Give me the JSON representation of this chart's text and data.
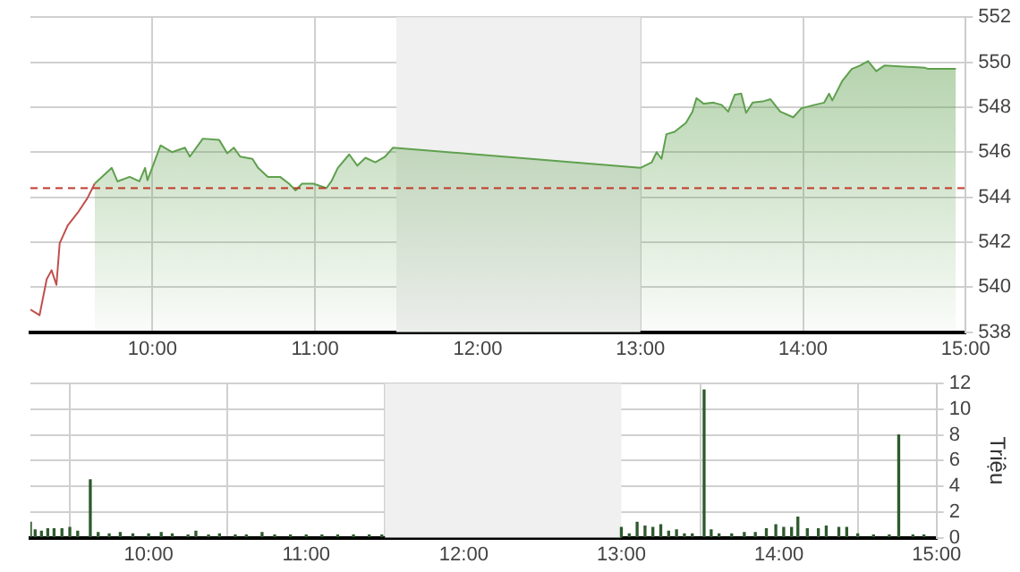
{
  "chart_data": [
    {
      "type": "line",
      "xlim": [
        9.25,
        15
      ],
      "xticks": [
        {
          "value": 10,
          "label": "10:00"
        },
        {
          "value": 11,
          "label": "11:00"
        },
        {
          "value": 12,
          "label": "12:00"
        },
        {
          "value": 13,
          "label": "13:00"
        },
        {
          "value": 14,
          "label": "14:00"
        },
        {
          "value": 15,
          "label": "15:00"
        }
      ],
      "ylim": [
        538,
        552
      ],
      "yticks": [
        538,
        540,
        542,
        544,
        546,
        548,
        550,
        552
      ],
      "grid": true,
      "legend": false,
      "series": [
        {
          "type": "line",
          "color": "#c0504d",
          "x": [
            9.25,
            9.306,
            9.35,
            9.38,
            9.41,
            9.43,
            9.48,
            9.54,
            9.6,
            9.645
          ],
          "values": [
            539.0,
            538.75,
            540.35,
            540.75,
            540.1,
            541.95,
            542.75,
            543.3,
            543.95,
            544.6
          ]
        },
        {
          "type": "area",
          "color": "#5fa04e",
          "x": [
            9.645,
            9.75,
            9.785,
            9.86,
            9.92,
            9.955,
            9.97,
            10.05,
            10.12,
            10.2,
            10.23,
            10.31,
            10.41,
            10.46,
            10.5,
            10.54,
            10.615,
            10.65,
            10.71,
            10.785,
            10.84,
            10.88,
            10.92,
            10.99,
            11.07,
            11.1,
            11.14,
            11.21,
            11.26,
            11.31,
            11.37,
            11.43,
            11.48,
            13.0,
            13.07,
            13.1,
            13.13,
            13.16,
            13.21,
            13.28,
            13.32,
            13.345,
            13.39,
            13.45,
            13.5,
            13.54,
            13.58,
            13.62,
            13.65,
            13.69,
            13.75,
            13.8,
            13.86,
            13.94,
            13.99,
            14.07,
            14.13,
            14.16,
            14.18,
            14.24,
            14.3,
            14.35,
            14.4,
            14.45,
            14.5,
            14.75,
            14.77,
            14.94
          ],
          "values": [
            544.6,
            545.3,
            544.7,
            544.9,
            544.7,
            545.3,
            544.75,
            546.3,
            546.0,
            546.2,
            545.8,
            546.6,
            546.55,
            545.95,
            546.2,
            545.8,
            545.7,
            545.3,
            544.9,
            544.9,
            544.6,
            544.3,
            544.6,
            544.6,
            544.4,
            544.7,
            545.3,
            545.9,
            545.4,
            545.75,
            545.55,
            545.8,
            546.2,
            545.3,
            545.55,
            546.0,
            545.7,
            546.8,
            546.9,
            547.3,
            547.8,
            548.4,
            548.15,
            548.2,
            548.1,
            547.8,
            548.55,
            548.6,
            547.75,
            548.2,
            548.25,
            548.35,
            547.8,
            547.55,
            547.95,
            548.1,
            548.2,
            548.6,
            548.3,
            549.15,
            549.7,
            549.85,
            550.05,
            549.6,
            549.85,
            549.75,
            549.7,
            549.7
          ]
        }
      ],
      "ref_lines": [
        {
          "axis": "y",
          "value": 544.4,
          "color": "#c0392b",
          "line_style": "dashed"
        }
      ],
      "bands": [
        {
          "axis": "x",
          "from": 11.5,
          "to": 13,
          "color": "#f0f0f0"
        }
      ]
    },
    {
      "type": "bar",
      "ylabel": "Triệu",
      "xlim": [
        9.25,
        15
      ],
      "xticks": [
        {
          "value": 10,
          "label": "10:00"
        },
        {
          "value": 11,
          "label": "11:00"
        },
        {
          "value": 12,
          "label": "12:00"
        },
        {
          "value": 13,
          "label": "13:00"
        },
        {
          "value": 14,
          "label": "14:00"
        },
        {
          "value": 15,
          "label": "15:00"
        }
      ],
      "ylim": [
        0,
        12
      ],
      "yticks": [
        0,
        2,
        4,
        6,
        8,
        10,
        12
      ],
      "grid": true,
      "legend": false,
      "color": "#2e5a2e",
      "x": [
        9.25,
        9.28,
        9.32,
        9.36,
        9.4,
        9.45,
        9.5,
        9.55,
        9.63,
        9.68,
        9.75,
        9.82,
        9.9,
        10.0,
        10.08,
        10.15,
        10.25,
        10.3,
        10.38,
        10.45,
        10.55,
        10.62,
        10.72,
        10.8,
        10.9,
        11.0,
        11.1,
        11.2,
        11.3,
        11.4,
        11.48,
        13.0,
        13.05,
        13.1,
        13.15,
        13.2,
        13.25,
        13.3,
        13.35,
        13.4,
        13.45,
        13.525,
        13.57,
        13.62,
        13.7,
        13.78,
        13.85,
        13.92,
        13.98,
        14.03,
        14.08,
        14.12,
        14.18,
        14.25,
        14.3,
        14.38,
        14.43,
        14.5,
        14.6,
        14.7,
        14.76,
        14.85,
        14.92
      ],
      "values": [
        1.2,
        0.6,
        0.5,
        0.7,
        0.7,
        0.7,
        0.8,
        0.5,
        4.5,
        0.4,
        0.3,
        0.4,
        0.3,
        0.3,
        0.4,
        0.3,
        0.2,
        0.5,
        0.2,
        0.3,
        0.2,
        0.2,
        0.4,
        0.2,
        0.2,
        0.2,
        0.2,
        0.2,
        0.2,
        0.2,
        0.2,
        0.8,
        0.3,
        1.2,
        0.9,
        0.8,
        1.0,
        0.5,
        0.6,
        0.3,
        0.3,
        11.5,
        0.6,
        0.3,
        0.3,
        0.4,
        0.4,
        0.7,
        1.0,
        0.8,
        0.8,
        1.6,
        0.7,
        0.7,
        0.9,
        0.8,
        0.8,
        0.3,
        0.2,
        0.2,
        8.0,
        0.2,
        0.2
      ],
      "bands": [
        {
          "axis": "x",
          "from": 11.5,
          "to": 13,
          "color": "#f0f0f0"
        }
      ]
    }
  ]
}
